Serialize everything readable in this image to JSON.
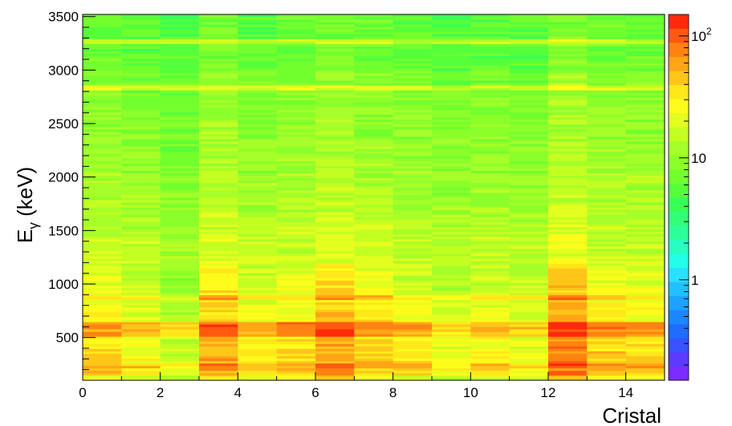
{
  "chart_data": {
    "type": "heatmap",
    "title": "",
    "xlabel": "Cristal",
    "ylabel_main": "E",
    "ylabel_sub": "γ",
    "ylabel_unit": " (keV)",
    "xlim": [
      0,
      15
    ],
    "ylim": [
      100,
      3520
    ],
    "x_ticks": [
      0,
      2,
      4,
      6,
      8,
      10,
      12,
      14
    ],
    "y_ticks": [
      500,
      1000,
      1500,
      2000,
      2500,
      3000,
      3500
    ],
    "colorbar": {
      "scale": "log",
      "range": [
        0.15,
        150
      ],
      "ticks": [
        {
          "value": 1,
          "label": "1"
        },
        {
          "value": 10,
          "label": "10"
        },
        {
          "value": 100,
          "label": "10",
          "sup": "2"
        }
      ]
    },
    "z_description": "counts per bin (log color scale); crystals 3,6,12 show higher counts below 1000 keV",
    "crystal_relative_intensity": [
      1.0,
      0.85,
      0.65,
      1.3,
      0.9,
      1.05,
      1.4,
      1.1,
      0.95,
      0.75,
      0.9,
      0.8,
      1.6,
      1.1,
      1.0
    ],
    "peak_lines_keV": [
      {
        "energy": 3270,
        "strength": 2.5
      },
      {
        "energy": 2840,
        "strength": 2.2
      },
      {
        "energy": 880,
        "strength": 1.8
      },
      {
        "energy": 615,
        "strength": 2.4
      },
      {
        "energy": 545,
        "strength": 2.0
      },
      {
        "energy": 240,
        "strength": 1.4
      }
    ],
    "colors": {
      "palette": [
        "#7b2cff",
        "#5c3bff",
        "#3a52ff",
        "#1f6cff",
        "#1c86ff",
        "#1ea2ff",
        "#22c0ff",
        "#29e0ff",
        "#22ffe8",
        "#27ffc0",
        "#2dff9a",
        "#33ff77",
        "#38ff55",
        "#55ff3a",
        "#73ff2e",
        "#8cff2b",
        "#a6ff28",
        "#c4ff22",
        "#e3ff1f",
        "#fffb1a",
        "#ffe81a",
        "#ffc61a",
        "#ffa516",
        "#ff8312",
        "#ff5a10",
        "#ff2a0c"
      ]
    }
  }
}
